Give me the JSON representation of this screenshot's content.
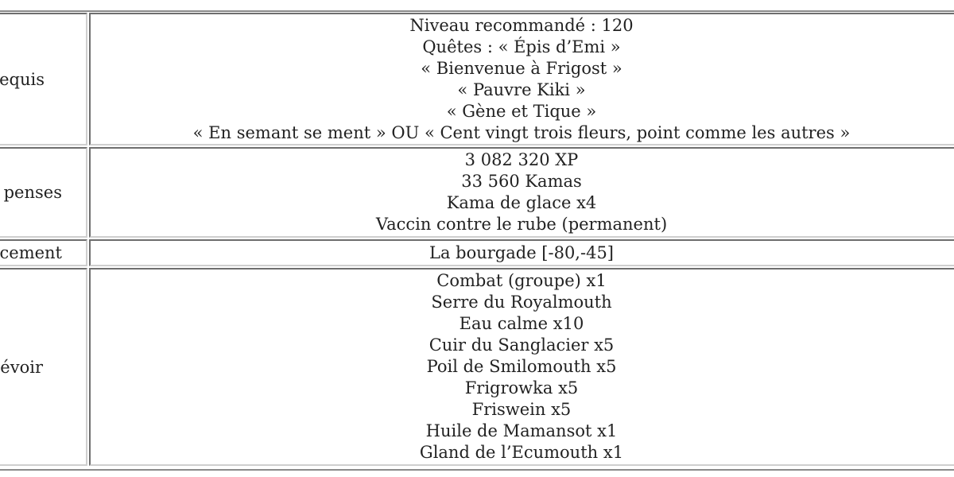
{
  "rows": [
    {
      "label": "equis",
      "values": [
        "Niveau recommandé : 120",
        "Quêtes : « Épis d’Emi »",
        "« Bienvenue à Frigost »",
        "« Pauvre Kiki »",
        "« Gène et Tique »",
        "« En semant se ment » OU « Cent vingt trois fleurs, point comme les autres »"
      ]
    },
    {
      "label": "penses",
      "values": [
        "3 082 320 XP",
        "33 560 Kamas",
        "Kama de glace x4",
        "Vaccin contre le rube (permanent)"
      ]
    },
    {
      "label": "cement",
      "values": [
        "La bourgade [-80,-45]"
      ]
    },
    {
      "label": "évoir",
      "values": [
        "Combat (groupe) x1",
        "Serre du Royalmouth",
        "Eau calme x10",
        "Cuir du Sanglacier x5",
        "Poil de Smilomouth x5",
        "Frigrowka x5",
        "Friswein x5",
        "Huile de Mamansot x1",
        "Gland de l’Ecumouth x1"
      ]
    }
  ]
}
